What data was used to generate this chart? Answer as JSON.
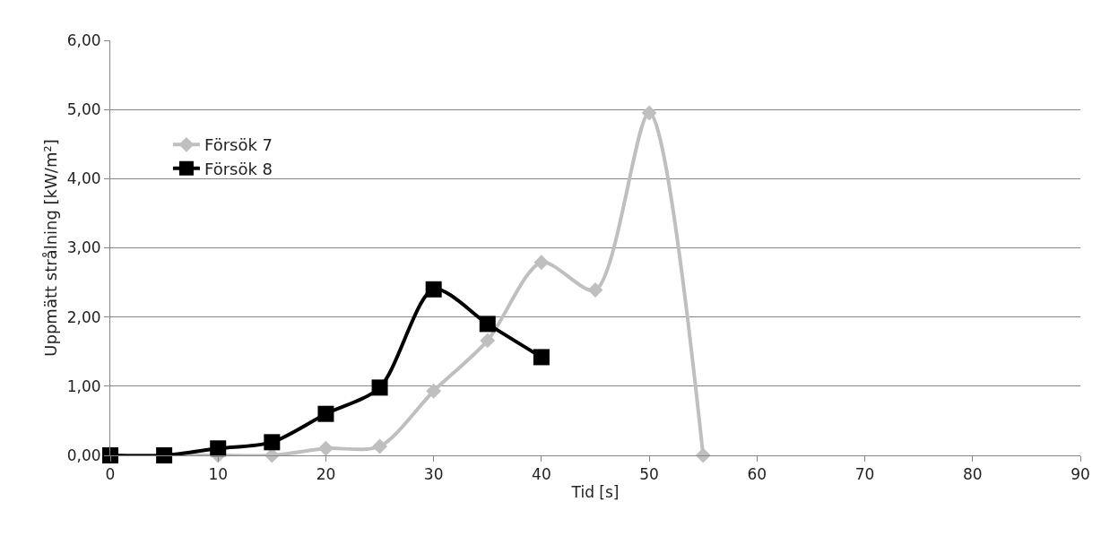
{
  "chart_data": {
    "type": "line",
    "xlabel": "Tid [s]",
    "ylabel": "Uppmätt strålning [kW/m²]",
    "x": [
      0,
      5,
      10,
      15,
      20,
      25,
      30,
      35,
      40,
      45,
      50,
      55
    ],
    "series": [
      {
        "name": "Försök 7",
        "color": "#bfbfbf",
        "marker": "diamond",
        "values": [
          0,
          0,
          0,
          0,
          0.1,
          0.13,
          0.93,
          1.66,
          2.79,
          2.39,
          4.95,
          0
        ]
      },
      {
        "name": "Försök 8",
        "color": "#000000",
        "marker": "square",
        "x": [
          0,
          5,
          10,
          15,
          20,
          25,
          30,
          35,
          40
        ],
        "values": [
          0,
          0,
          0.1,
          0.19,
          0.6,
          0.98,
          2.4,
          1.9,
          1.42
        ]
      }
    ],
    "xlim": [
      0,
      90
    ],
    "xticks": [
      0,
      10,
      20,
      30,
      40,
      50,
      60,
      70,
      80,
      90
    ],
    "ylim": [
      0,
      6
    ],
    "yticks": [
      {
        "value": 0,
        "label": "0,00"
      },
      {
        "value": 1,
        "label": "1,00"
      },
      {
        "value": 2,
        "label": "2,00"
      },
      {
        "value": 3,
        "label": "3,00"
      },
      {
        "value": 4,
        "label": "4,00"
      },
      {
        "value": 5,
        "label": "5,00"
      },
      {
        "value": 6,
        "label": "6,00"
      }
    ],
    "grid": "y",
    "legend": "left",
    "line_style": "solid"
  }
}
